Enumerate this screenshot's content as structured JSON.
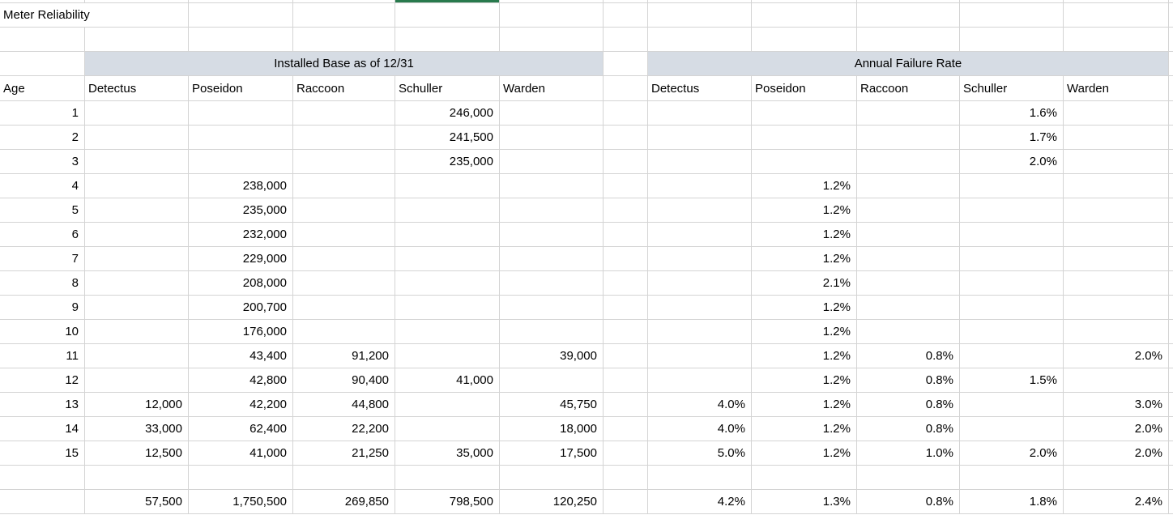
{
  "title": "Meter Reliability",
  "group_headers": {
    "installed_base": "Installed Base as of 12/31",
    "failure_rate": "Annual Failure Rate"
  },
  "column_headers": {
    "age": "Age",
    "installed": [
      "Detectus",
      "Poseidon",
      "Raccoon",
      "Schuller",
      "Warden"
    ],
    "failure": [
      "Detectus",
      "Poseidon",
      "Raccoon",
      "Schuller",
      "Warden"
    ]
  },
  "rows": [
    {
      "age": "1",
      "installed": [
        "",
        "",
        "",
        "246,000",
        ""
      ],
      "failure": [
        "",
        "",
        "",
        "1.6%",
        ""
      ]
    },
    {
      "age": "2",
      "installed": [
        "",
        "",
        "",
        "241,500",
        ""
      ],
      "failure": [
        "",
        "",
        "",
        "1.7%",
        ""
      ]
    },
    {
      "age": "3",
      "installed": [
        "",
        "",
        "",
        "235,000",
        ""
      ],
      "failure": [
        "",
        "",
        "",
        "2.0%",
        ""
      ]
    },
    {
      "age": "4",
      "installed": [
        "",
        "238,000",
        "",
        "",
        ""
      ],
      "failure": [
        "",
        "1.2%",
        "",
        "",
        ""
      ]
    },
    {
      "age": "5",
      "installed": [
        "",
        "235,000",
        "",
        "",
        ""
      ],
      "failure": [
        "",
        "1.2%",
        "",
        "",
        ""
      ]
    },
    {
      "age": "6",
      "installed": [
        "",
        "232,000",
        "",
        "",
        ""
      ],
      "failure": [
        "",
        "1.2%",
        "",
        "",
        ""
      ]
    },
    {
      "age": "7",
      "installed": [
        "",
        "229,000",
        "",
        "",
        ""
      ],
      "failure": [
        "",
        "1.2%",
        "",
        "",
        ""
      ]
    },
    {
      "age": "8",
      "installed": [
        "",
        "208,000",
        "",
        "",
        ""
      ],
      "failure": [
        "",
        "2.1%",
        "",
        "",
        ""
      ]
    },
    {
      "age": "9",
      "installed": [
        "",
        "200,700",
        "",
        "",
        ""
      ],
      "failure": [
        "",
        "1.2%",
        "",
        "",
        ""
      ]
    },
    {
      "age": "10",
      "installed": [
        "",
        "176,000",
        "",
        "",
        ""
      ],
      "failure": [
        "",
        "1.2%",
        "",
        "",
        ""
      ]
    },
    {
      "age": "11",
      "installed": [
        "",
        "43,400",
        "91,200",
        "",
        "39,000"
      ],
      "failure": [
        "",
        "1.2%",
        "0.8%",
        "",
        "2.0%"
      ]
    },
    {
      "age": "12",
      "installed": [
        "",
        "42,800",
        "90,400",
        "41,000",
        ""
      ],
      "failure": [
        "",
        "1.2%",
        "0.8%",
        "1.5%",
        ""
      ]
    },
    {
      "age": "13",
      "installed": [
        "12,000",
        "42,200",
        "44,800",
        "",
        "45,750"
      ],
      "failure": [
        "4.0%",
        "1.2%",
        "0.8%",
        "",
        "3.0%"
      ]
    },
    {
      "age": "14",
      "installed": [
        "33,000",
        "62,400",
        "22,200",
        "",
        "18,000"
      ],
      "failure": [
        "4.0%",
        "1.2%",
        "0.8%",
        "",
        "2.0%"
      ]
    },
    {
      "age": "15",
      "installed": [
        "12,500",
        "41,000",
        "21,250",
        "35,000",
        "17,500"
      ],
      "failure": [
        "5.0%",
        "1.2%",
        "1.0%",
        "2.0%",
        "2.0%"
      ]
    }
  ],
  "totals": {
    "age": "",
    "installed": [
      "57,500",
      "1,750,500",
      "269,850",
      "798,500",
      "120,250"
    ],
    "failure": [
      "4.2%",
      "1.3%",
      "0.8%",
      "1.8%",
      "2.4%"
    ]
  },
  "colors": {
    "band_fill": "#d6dce4",
    "gridline": "#d4d4d4",
    "selection_green": "#287a4d"
  }
}
